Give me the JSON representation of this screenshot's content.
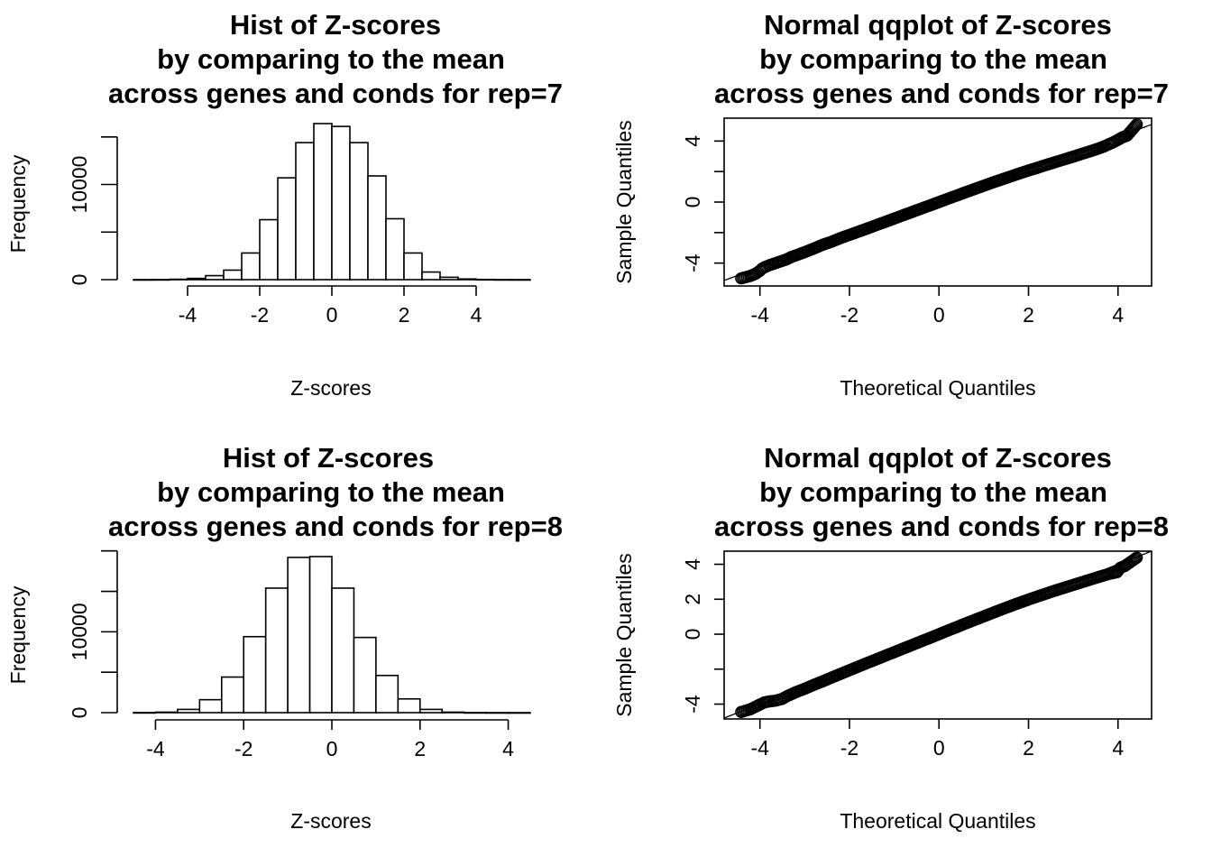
{
  "chart_data": [
    {
      "type": "bar",
      "title": [
        "Hist of Z-scores",
        "by comparing to the mean",
        "across genes and conds for rep=7"
      ],
      "xlabel": "Z-scores",
      "ylabel": "Frequency",
      "bin_width": 0.5,
      "bin_edges": [
        -5.5,
        -5.0,
        -4.5,
        -4.0,
        -3.5,
        -3.0,
        -2.5,
        -2.0,
        -1.5,
        -1.0,
        -0.5,
        0.0,
        0.5,
        1.0,
        1.5,
        2.0,
        2.5,
        3.0,
        3.5,
        4.0,
        4.5,
        5.0,
        5.5
      ],
      "values": [
        3,
        8,
        40,
        130,
        420,
        1000,
        2800,
        6300,
        10700,
        14400,
        16400,
        16100,
        14400,
        10900,
        6400,
        2800,
        800,
        250,
        70,
        20,
        6,
        2
      ],
      "xticks": [
        -4,
        -2,
        0,
        2,
        4
      ],
      "xtick_labels": [
        "-4",
        "-2",
        "0",
        "2",
        "4"
      ],
      "xlim": [
        -5.5,
        5.5
      ],
      "yticks": [
        0,
        5000,
        10000,
        15000
      ],
      "ytick_labels": [
        "0",
        "",
        "10000",
        ""
      ],
      "ylim": [
        0,
        16400
      ]
    },
    {
      "type": "scatter",
      "title": [
        "Normal qqplot of Z-scores",
        "by comparing to the mean",
        "across genes and conds for rep=7"
      ],
      "xlabel": "Theoretical Quantiles",
      "ylabel": "Sample Quantiles",
      "xticks": [
        -4,
        -2,
        0,
        2,
        4
      ],
      "xtick_labels": [
        "-4",
        "-2",
        "0",
        "2",
        "4"
      ],
      "xlim": [
        -4.8,
        4.75
      ],
      "yticks": [
        -4,
        -2,
        0,
        2,
        4
      ],
      "ytick_labels": [
        "-4",
        "",
        "0",
        "",
        "4"
      ],
      "ylim": [
        -5.5,
        5.5
      ],
      "reference_line": {
        "slope": 1.07,
        "intercept": 0.0
      },
      "points": [
        [
          -4.42,
          -5.0
        ],
        [
          -4.22,
          -4.85
        ],
        [
          -4.1,
          -4.7
        ],
        [
          -4.0,
          -4.5
        ],
        [
          -3.95,
          -4.35
        ],
        [
          -3.88,
          -4.25
        ],
        [
          -3.8,
          -4.15
        ],
        [
          -3.7,
          -4.05
        ],
        [
          -3.6,
          -3.95
        ],
        [
          -3.5,
          -3.85
        ],
        [
          -3.4,
          -3.75
        ],
        [
          -3.3,
          -3.6
        ],
        [
          -3.2,
          -3.5
        ],
        [
          -3.0,
          -3.28
        ],
        [
          -2.8,
          -3.05
        ],
        [
          -2.6,
          -2.8
        ],
        [
          -2.4,
          -2.6
        ],
        [
          -2.2,
          -2.36
        ],
        [
          -2.0,
          -2.15
        ],
        [
          -1.8,
          -1.94
        ],
        [
          -1.6,
          -1.73
        ],
        [
          -1.4,
          -1.51
        ],
        [
          -1.2,
          -1.3
        ],
        [
          -1.0,
          -1.08
        ],
        [
          -0.8,
          -0.86
        ],
        [
          -0.6,
          -0.65
        ],
        [
          -0.4,
          -0.43
        ],
        [
          -0.2,
          -0.22
        ],
        [
          0.0,
          0.0
        ],
        [
          0.2,
          0.22
        ],
        [
          0.4,
          0.43
        ],
        [
          0.6,
          0.65
        ],
        [
          0.8,
          0.86
        ],
        [
          1.0,
          1.07
        ],
        [
          1.2,
          1.28
        ],
        [
          1.4,
          1.48
        ],
        [
          1.6,
          1.68
        ],
        [
          1.8,
          1.88
        ],
        [
          2.0,
          2.07
        ],
        [
          2.2,
          2.25
        ],
        [
          2.4,
          2.44
        ],
        [
          2.6,
          2.62
        ],
        [
          2.8,
          2.8
        ],
        [
          3.0,
          2.98
        ],
        [
          3.2,
          3.17
        ],
        [
          3.4,
          3.35
        ],
        [
          3.6,
          3.55
        ],
        [
          3.7,
          3.66
        ],
        [
          3.8,
          3.8
        ],
        [
          3.9,
          3.93
        ],
        [
          3.98,
          4.05
        ],
        [
          4.1,
          4.25
        ],
        [
          4.2,
          4.35
        ],
        [
          4.42,
          5.1
        ]
      ]
    },
    {
      "type": "bar",
      "title": [
        "Hist of Z-scores",
        "by comparing to the mean",
        "across genes and conds for rep=8"
      ],
      "xlabel": "Z-scores",
      "ylabel": "Frequency",
      "bin_width": 0.5,
      "bin_edges": [
        -4.5,
        -4.0,
        -3.5,
        -3.0,
        -2.5,
        -2.0,
        -1.5,
        -1.0,
        -0.5,
        0.0,
        0.5,
        1.0,
        1.5,
        2.0,
        2.5,
        3.0,
        3.5,
        4.0,
        4.5
      ],
      "values": [
        10,
        60,
        400,
        1600,
        4400,
        9400,
        15400,
        19200,
        19300,
        15400,
        9300,
        4600,
        1700,
        400,
        60,
        10,
        3,
        1
      ],
      "xticks": [
        -4,
        -2,
        0,
        2,
        4
      ],
      "xtick_labels": [
        "-4",
        "-2",
        "0",
        "2",
        "4"
      ],
      "xlim": [
        -4.5,
        4.5
      ],
      "yticks": [
        0,
        5000,
        10000,
        15000,
        20000
      ],
      "ytick_labels": [
        "0",
        "",
        "10000",
        "",
        ""
      ],
      "ylim": [
        0,
        19300
      ]
    },
    {
      "type": "scatter",
      "title": [
        "Normal qqplot of Z-scores",
        "by comparing to the mean",
        "across genes and conds for rep=8"
      ],
      "xlabel": "Theoretical Quantiles",
      "ylabel": "Sample Quantiles",
      "xticks": [
        -4,
        -2,
        0,
        2,
        4
      ],
      "xtick_labels": [
        "-4",
        "-2",
        "0",
        "2",
        "4"
      ],
      "xlim": [
        -4.8,
        4.75
      ],
      "yticks": [
        -4,
        -2,
        0,
        2,
        4
      ],
      "ytick_labels": [
        "-4",
        "",
        "0",
        "2",
        "4"
      ],
      "ylim": [
        -4.85,
        4.75
      ],
      "reference_line": {
        "slope": 1.0,
        "intercept": 0.0
      },
      "points": [
        [
          -4.42,
          -4.45
        ],
        [
          -4.22,
          -4.3
        ],
        [
          -4.1,
          -4.15
        ],
        [
          -3.98,
          -4.0
        ],
        [
          -3.9,
          -3.9
        ],
        [
          -3.8,
          -3.85
        ],
        [
          -3.65,
          -3.8
        ],
        [
          -3.5,
          -3.7
        ],
        [
          -3.4,
          -3.55
        ],
        [
          -3.2,
          -3.32
        ],
        [
          -3.0,
          -3.12
        ],
        [
          -2.8,
          -2.9
        ],
        [
          -2.6,
          -2.7
        ],
        [
          -2.4,
          -2.48
        ],
        [
          -2.2,
          -2.27
        ],
        [
          -2.0,
          -2.06
        ],
        [
          -1.8,
          -1.85
        ],
        [
          -1.6,
          -1.64
        ],
        [
          -1.4,
          -1.44
        ],
        [
          -1.2,
          -1.23
        ],
        [
          -1.0,
          -1.03
        ],
        [
          -0.8,
          -0.82
        ],
        [
          -0.6,
          -0.62
        ],
        [
          -0.4,
          -0.41
        ],
        [
          -0.2,
          -0.21
        ],
        [
          0.0,
          0.0
        ],
        [
          0.2,
          0.21
        ],
        [
          0.4,
          0.41
        ],
        [
          0.6,
          0.62
        ],
        [
          0.8,
          0.82
        ],
        [
          1.0,
          1.02
        ],
        [
          1.2,
          1.22
        ],
        [
          1.4,
          1.42
        ],
        [
          1.6,
          1.61
        ],
        [
          1.8,
          1.8
        ],
        [
          2.0,
          1.98
        ],
        [
          2.2,
          2.16
        ],
        [
          2.4,
          2.33
        ],
        [
          2.6,
          2.5
        ],
        [
          2.8,
          2.66
        ],
        [
          3.0,
          2.82
        ],
        [
          3.2,
          2.98
        ],
        [
          3.4,
          3.14
        ],
        [
          3.6,
          3.3
        ],
        [
          3.8,
          3.45
        ],
        [
          3.98,
          3.55
        ],
        [
          4.05,
          3.8
        ],
        [
          4.15,
          3.9
        ],
        [
          4.42,
          4.38
        ]
      ]
    }
  ]
}
